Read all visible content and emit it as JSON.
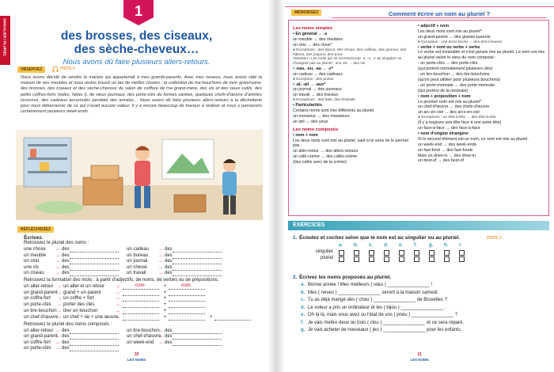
{
  "left_page": {
    "side_tab": "SINGULIER / PLURIEL",
    "lesson_number": "1",
    "title": [
      "des brosses, des ciseaux,",
      "des sèche-cheveux…"
    ],
    "subtitle": "Nous avons dû faire plusieurs allers-retours.",
    "observez": {
      "label": "OBSERVEZ",
      "track": "PISTE 2",
      "text": "Nous avons décidé de vendre la maison qui appartenait à mes grands-parents. Avec mes neveux, nous avons vidé la maison de ses meubles et nous avons trouvé un tas de vieilles choses : la collection de tire-bouchons de mon grand-père, des brosses, des ciseaux et des sèche-cheveux du salon de coiffure de ma grand-mère, des vis et des vieux outils, des petits coffres-forts (vides, hélas !), de vieux journaux, des porte-clés de formes variées, quelques chefs-d'œuvre d'artistes inconnus, des cadeaux accumulés pendant des années… Nous avons dû faire plusieurs allers-retours à la déchetterie pour nous débarrasser de ce qui n'avait aucune valeur. Il y a encore beaucoup de travaux à réaliser et nous y passerons certainement plusieurs week-ends."
    },
    "reflechissez": {
      "label": "RÉFLÉCHISSEZ",
      "instruction": "Écrivez.",
      "arrow": "→",
      "article": "des",
      "exercise_1": {
        "instruction": "Retrouvez le pluriel des noms :",
        "left": [
          "une chose",
          "un meuble",
          "un clou",
          "une vis",
          "un ciseau"
        ],
        "right": [
          "un cadeau",
          "un bureau",
          "un journal",
          "un cheval",
          "un travail"
        ]
      },
      "exercise_2": {
        "instruction": "Retrouvez la formation des mots : à partir d'adjectifs, de noms, de verbes ou de prépositions.",
        "rows": [
          [
            "un aller-retour",
            "un aller et un retour"
          ],
          [
            "un grand-parent",
            "grand + un parent"
          ],
          [
            "un coffre-fort",
            "un coffre + fort"
          ],
          [
            "un porte-clés",
            "porter des clés"
          ],
          [
            "un tire-bouchon",
            "tirer un bouchon"
          ],
          [
            "un chef-d'œuvre",
            "un chef + de + une œuvre"
          ]
        ],
        "hint": [
          "nom",
          "+",
          "nom"
        ]
      },
      "exercise_3": {
        "instruction": "Retrouvez le pluriel des noms composés :",
        "left": [
          "un aller-retour",
          "un grand-parent",
          "un coffre-fort",
          "un porte-clés"
        ],
        "right": [
          "un tire-bouchon",
          "un chef-d'œuvre",
          "un week-end"
        ]
      }
    },
    "footer": {
      "page": "10",
      "section": "LES NOMS"
    }
  },
  "right_page": {
    "memorisez": {
      "label": "MÉMORISEZ",
      "heading": "Comment écrire un nom au pluriel ?",
      "columns": [
        [
          {
            "heading": "Les noms simples",
            "lines": [
              "• En général → -s",
              "un meuble → des meubles",
              "un clou → des clous*",
              "● Exceptions : des bijoux, des choux, des cailloux, des genoux, des hiboux, des joujoux, des poux",
              "Attention ! Les mots qui se terminent par -s, -x, -z au singulier ne changent pas au pluriel : une vis → des vis",
              "• -eau, -eu, -au → -x*",
              "un cadeau → des cadeaux",
              "● Exception : des pneus",
              "• -al, -ail → -aux*",
              "un journal → des journaux",
              "un travail → des travaux",
              "● Exceptions : des bals, des festivals",
              "• Particularités",
              "Certains noms sont très différents au pluriel.",
              "un monsieur → des messieurs",
              "un œil → des yeux"
            ]
          },
          {
            "heading": "Les noms composés",
            "lines": [
              "• nom + nom",
              "Les deux mots sont mis au pluriel, sauf si le sens ne le permet pas.",
              "un aller-retour → des allers-retours",
              "un café-crème → des cafés-crème",
              "(des cafés avec de la crème)"
            ]
          }
        ],
        [
          {
            "lines": [
              "• adjectif + nom",
              "Les deux mots sont mis au pluriel*.",
              "un grand-parent → des grands-parents",
              "● Exception : une demi-heure → des demi-heures",
              "• verbe + nom ou verbe + verbe",
              "Le verbe est invariable et n'est jamais mis au pluriel. Le nom est mis au pluriel selon le sens du nom composé :",
              "- un porte-clés → des porte-clés",
              "(qui portent normalement plusieurs clés)",
              "- un tire-bouchon → des tire-bouchons",
              "(qu'on peut utiliser pour plusieurs bouchons)",
              "- un porte-monnaie → des porte-monnaie",
              "(qui portent de la monnaie)",
              "• nom + préposition + nom",
              "Le premier nom est mis au pluriel*.",
              "un chef-d'œuvre → des chefs-d'œuvre",
              "un arc-en-ciel → des arcs-en-ciel",
              "● Exceptions : un tête-à-tête → des tête-à-tête",
              "(il y a toujours une tête face à une autre tête)",
              "un face-à-face → des face-à-face",
              "• nom d'origine étrangère",
              "Si le second élément est un nom, ce nom est mis au pluriel.",
              "un week-end → des week-ends",
              "un fast-food → des fast-foods",
              "Mais un drive-in → des drive-in",
              "un best-of → des best-of"
            ]
          }
        ]
      ]
    },
    "exercises": {
      "label": "EXERCICES",
      "exercise_1": {
        "number": "1.",
        "instruction": "Écoutez et cochez selon que le nom est au singulier ou au pluriel.",
        "track": "PISTE 3",
        "columns": [
          "a.",
          "b.",
          "c.",
          "d.",
          "e.",
          "f.",
          "g.",
          "h.",
          "i."
        ],
        "rows": [
          "singulier",
          "pluriel"
        ]
      },
      "exercise_2": {
        "number": "2.",
        "instruction": "Écrivez les noms proposés au pluriel.",
        "items": [
          {
            "letter": "a.",
            "text": "Bonne année ! Mes meilleurs ( vœu ) ________________ !"
          },
          {
            "letter": "b.",
            "text": "Mes ( neveu ) ________________ seront à la maison samedi."
          },
          {
            "letter": "c.",
            "text": "Tu as déjà mangé des ( chou ) ________________ de Bruxelles ?"
          },
          {
            "letter": "d.",
            "text": "Le voleur a pris un ordinateur et les ( bijou ) ________________ ."
          },
          {
            "letter": "e.",
            "text": "Oh là là, mais vous avez vu l'état de vos ( pneu ) ________________ ?"
          },
          {
            "letter": "f.",
            "text": "Je vais mettre deux ou trois ( clou ) ________________ et ce sera réparé."
          },
          {
            "letter": "g.",
            "text": "Je vais acheter de nouveaux ( jeu ) ________________ pour les enfants."
          }
        ]
      }
    },
    "footer": {
      "page": "11",
      "section": "LES NOMS"
    }
  }
}
